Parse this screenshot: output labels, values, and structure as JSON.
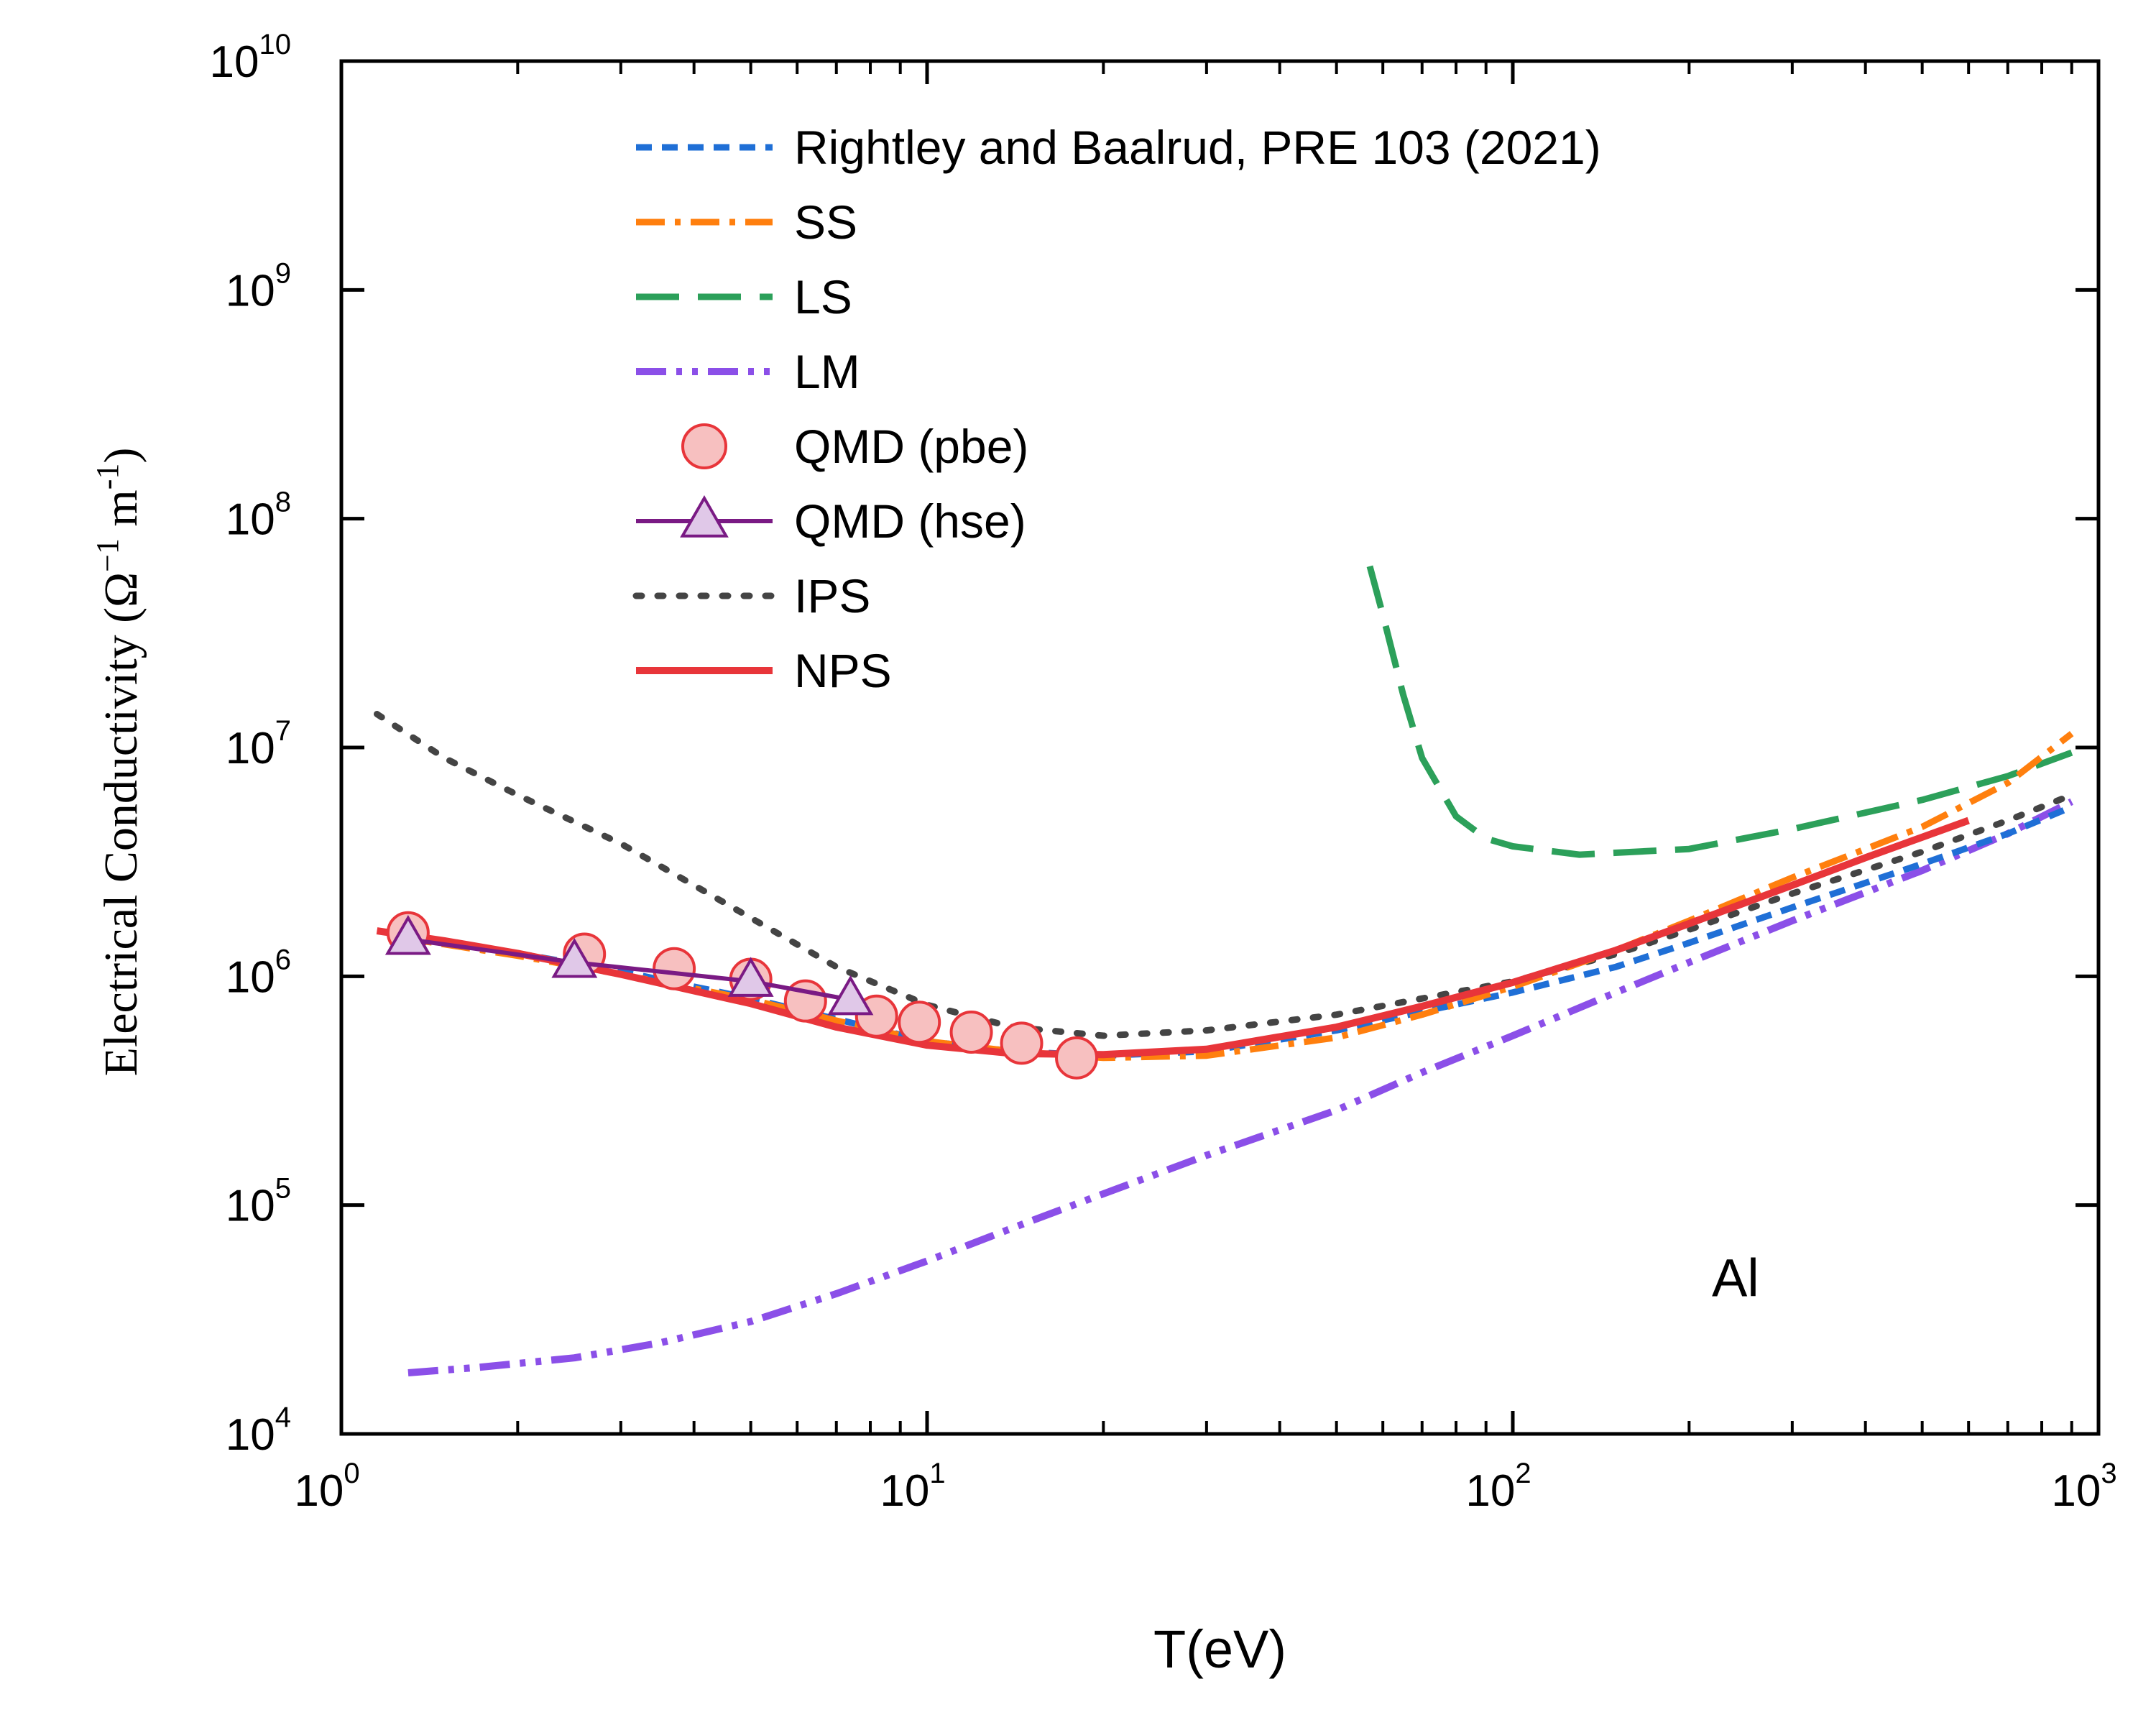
{
  "chart_data": {
    "type": "line",
    "title": "",
    "xlabel": "T(eV)",
    "ylabel_main": "Electrical Conductivity (Ω",
    "ylabel_sup1": "−1",
    "ylabel_mid": " m",
    "ylabel_sup2": "-1",
    "ylabel_end": ")",
    "xscale": "log",
    "yscale": "log",
    "xlim": [
      1,
      1000
    ],
    "ylim": [
      10000,
      10000000000
    ],
    "x_ticks": [
      {
        "base": "10",
        "exp": "0",
        "value": 1
      },
      {
        "base": "10",
        "exp": "1",
        "value": 10
      },
      {
        "base": "10",
        "exp": "2",
        "value": 100
      },
      {
        "base": "10",
        "exp": "3",
        "value": 1000
      }
    ],
    "y_ticks": [
      {
        "base": "10",
        "exp": "4",
        "value": 10000
      },
      {
        "base": "10",
        "exp": "5",
        "value": 100000
      },
      {
        "base": "10",
        "exp": "6",
        "value": 1000000
      },
      {
        "base": "10",
        "exp": "7",
        "value": 10000000
      },
      {
        "base": "10",
        "exp": "8",
        "value": 100000000
      },
      {
        "base": "10",
        "exp": "9",
        "value": 1000000000
      },
      {
        "base": "10",
        "exp": "10",
        "value": 10000000000
      }
    ],
    "annotation": "Al",
    "legend_position": "top-center",
    "series": [
      {
        "name": "Rightley and Baalrud, PRE 103 (2021)",
        "style": "short-dash",
        "color": "#1f6fd6",
        "x": [
          1.2,
          1.5,
          2,
          3,
          5,
          7,
          10,
          14,
          20,
          30,
          50,
          70,
          100,
          150,
          200,
          300,
          500,
          700,
          900
        ],
        "y": [
          1550000,
          1420000,
          1260000,
          1050000,
          800000,
          650000,
          520000,
          470000,
          450000,
          470000,
          580000,
          700000,
          850000,
          1100000,
          1400000,
          2000000,
          3100000,
          4200000,
          5500000
        ]
      },
      {
        "name": "SS",
        "style": "dash-dot",
        "color": "#ff7f0e",
        "x": [
          1.2,
          1.5,
          2,
          3,
          5,
          7,
          10,
          14,
          20,
          30,
          50,
          70,
          100,
          150,
          200,
          300,
          500,
          700,
          900
        ],
        "y": [
          1500000,
          1380000,
          1230000,
          1020000,
          790000,
          640000,
          520000,
          470000,
          440000,
          450000,
          540000,
          680000,
          900000,
          1300000,
          1750000,
          2700000,
          4500000,
          7000000,
          11500000
        ]
      },
      {
        "name": "LS",
        "style": "long-dash",
        "color": "#2ca05a",
        "x": [
          57,
          60,
          65,
          70,
          80,
          90,
          100,
          130,
          200,
          300,
          500,
          700,
          900
        ],
        "y": [
          62000000,
          38000000,
          17000000,
          9000000,
          5000000,
          4000000,
          3700000,
          3400000,
          3600000,
          4400000,
          5900000,
          7500000,
          9500000
        ]
      },
      {
        "name": "LM",
        "style": "dash-dot-dot",
        "color": "#8b4fe8",
        "x": [
          1.3,
          1.7,
          2.5,
          3.5,
          5,
          7,
          10,
          15,
          20,
          30,
          50,
          70,
          100,
          150,
          200,
          300,
          500,
          700,
          900
        ],
        "y": [
          18500,
          19500,
          21500,
          25000,
          31000,
          41000,
          57000,
          85000,
          112000,
          165000,
          260000,
          380000,
          550000,
          850000,
          1150000,
          1750000,
          2900000,
          4200000,
          5800000
        ]
      },
      {
        "name": "QMD (pbe)",
        "style": "marker-circle",
        "color": "#e8353a",
        "fill": "#f7c0c0",
        "x": [
          1.3,
          2.6,
          3.7,
          5.0,
          6.2,
          8.2,
          9.7,
          11.9,
          14.5,
          18.0
        ],
        "y": [
          1550000,
          1250000,
          1080000,
          970000,
          780000,
          670000,
          630000,
          570000,
          510000,
          440000
        ]
      },
      {
        "name": "QMD (hse)",
        "style": "line-triangle",
        "color": "#7a1a84",
        "fill": "#e0c8e8",
        "x": [
          1.3,
          2.5,
          5.0,
          7.4
        ],
        "y": [
          1450000,
          1150000,
          950000,
          790000
        ]
      },
      {
        "name": "IPS",
        "style": "dotted",
        "color": "#444444",
        "x": [
          1.15,
          1.5,
          2,
          3,
          4,
          5,
          7,
          10,
          14,
          20,
          30,
          50,
          70,
          100,
          150,
          200,
          300,
          500,
          700,
          900
        ],
        "y": [
          14000000,
          9000000,
          6200000,
          3800000,
          2500000,
          1800000,
          1100000,
          750000,
          600000,
          550000,
          580000,
          680000,
          800000,
          950000,
          1250000,
          1600000,
          2300000,
          3500000,
          4800000,
          6200000
        ]
      },
      {
        "name": "NPS",
        "style": "solid",
        "color": "#e8353a",
        "x": [
          1.15,
          1.5,
          2,
          3,
          5,
          7,
          10,
          14,
          20,
          30,
          50,
          70,
          100,
          150,
          200,
          300,
          400,
          600
        ],
        "y": [
          1580000,
          1430000,
          1260000,
          1020000,
          760000,
          600000,
          500000,
          460000,
          455000,
          480000,
          600000,
          740000,
          940000,
          1300000,
          1700000,
          2500000,
          3300000,
          4800000
        ]
      }
    ]
  }
}
